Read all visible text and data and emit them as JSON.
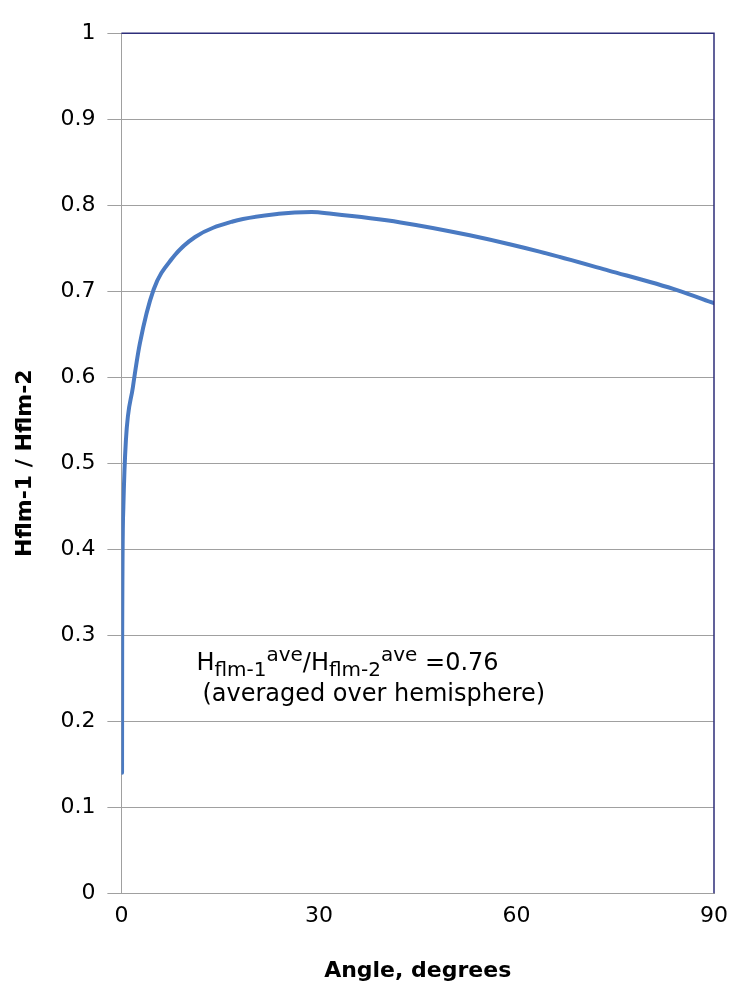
{
  "chart_data": {
    "type": "line",
    "xlabel": "Angle, degrees",
    "ylabel": "Hflm-1 / Hflm-2",
    "x": [
      0.1,
      0.12,
      0.3,
      0.68,
      1.74,
      2.8,
      4.9,
      7.7,
      11.2,
      16.9,
      23.9,
      28.9,
      31.9,
      42.4,
      52.9,
      63.5,
      74,
      84.5,
      90
    ],
    "series": [
      {
        "color": "#4a7ac2",
        "values": [
          0.14,
          0.294,
          0.449,
          0.526,
          0.588,
          0.639,
          0.702,
          0.738,
          0.763,
          0.781,
          0.79,
          0.792,
          0.79,
          0.78,
          0.765,
          0.746,
          0.724,
          0.701,
          0.686
        ]
      }
    ],
    "xlim": [
      0,
      90
    ],
    "xticks": [
      0,
      30,
      60,
      90
    ],
    "ylim": [
      0,
      1
    ],
    "yticks": [
      0,
      0.1,
      0.2,
      0.3,
      0.4,
      0.5,
      0.6,
      0.7,
      0.8,
      0.9,
      1
    ],
    "grid": "y",
    "legend": false,
    "marker": "none",
    "line_style": "solid",
    "annotations": [
      "H$_{flm-1}$$^{ave}$/H$_{flm-2}$$^{ave}$ =0.76",
      "(averaged over hemisphere)"
    ]
  }
}
